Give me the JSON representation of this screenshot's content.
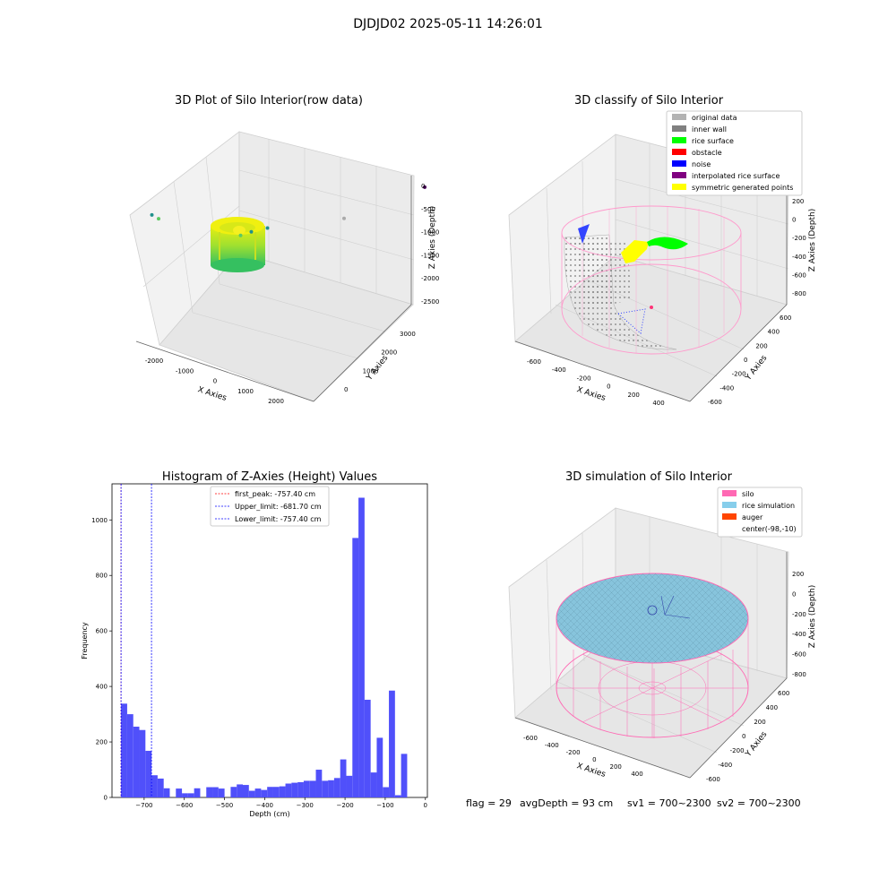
{
  "figure": {
    "suptitle": "DJDJD02 2025-05-11 14:26:01",
    "status_line": {
      "flag": "flag = 29",
      "avg_depth": "avgDepth = 93 cm",
      "sv1": "sv1 = 700~2300",
      "sv2": "sv2 = 700~2300"
    }
  },
  "chart_data": [
    {
      "type": "scatter3d",
      "title": "3D Plot of Silo Interior(row data)",
      "xlabel": "X Axies",
      "ylabel": "Y Axies",
      "zlabel": "Z Axies (Depth)",
      "x_ticks": [
        "-2000",
        "-1000",
        "0",
        "1000",
        "2000"
      ],
      "y_ticks": [
        "0",
        "1000",
        "2000",
        "3000"
      ],
      "z_ticks": [
        "0",
        "-500",
        "-1000",
        "-1500",
        "-2000",
        "-2500"
      ],
      "colormap": [
        "#440154",
        "#21918c",
        "#5ec962",
        "#fde725"
      ],
      "outliers": [
        {
          "x": -2200,
          "y": 300,
          "z": -1400,
          "color": "#5ec962"
        },
        {
          "x": -2300,
          "y": 200,
          "z": -1700,
          "color": "#21918c"
        },
        {
          "x": -300,
          "y": 500,
          "z": -1500,
          "color": "#5ec962"
        },
        {
          "x": 100,
          "y": 300,
          "z": -2300,
          "color": "#21918c"
        },
        {
          "x": 300,
          "y": 600,
          "z": -2200,
          "color": "#21918c"
        },
        {
          "x": 1600,
          "y": 1500,
          "z": -2300,
          "color": "#aaaaaa"
        },
        {
          "x": 2600,
          "y": 3000,
          "z": -2500,
          "color": "#440154"
        }
      ]
    },
    {
      "type": "scatter3d",
      "title": "3D classify of Silo Interior",
      "xlabel": "X Axies",
      "ylabel": "Y Axies",
      "zlabel": "Z Axies (Depth)",
      "x_ticks": [
        "-600",
        "-400",
        "-200",
        "0",
        "200",
        "400"
      ],
      "y_ticks": [
        "-600",
        "-400",
        "-200",
        "0",
        "200",
        "400",
        "600"
      ],
      "z_ticks": [
        "200",
        "0",
        "-200",
        "-400",
        "-600",
        "-800"
      ],
      "legend_position": "upper-right",
      "legend": [
        {
          "label": "original data",
          "color": "#b3b3b3"
        },
        {
          "label": "inner wall",
          "color": "#808080"
        },
        {
          "label": "rice surface",
          "color": "#00ff00"
        },
        {
          "label": "obstacle",
          "color": "#ff0000"
        },
        {
          "label": "noise",
          "color": "#0000ff"
        },
        {
          "label": "interpolated rice surface",
          "color": "#800080"
        },
        {
          "label": "symmetric generated points",
          "color": "#ffff00"
        }
      ]
    },
    {
      "type": "bar",
      "title": "Histogram of Z-Axies (Height) Values",
      "xlabel": "Depth (cm)",
      "ylabel": "Frequency",
      "xlim": [
        -780,
        5
      ],
      "ylim": [
        0,
        1130
      ],
      "x_ticks": [
        -700,
        -600,
        -500,
        -400,
        -300,
        -200,
        -100,
        0
      ],
      "y_ticks": [
        0,
        200,
        400,
        600,
        800,
        1000
      ],
      "bin_start": -757.4,
      "bin_width": 15.15,
      "values": [
        338,
        300,
        255,
        243,
        168,
        80,
        68,
        33,
        0,
        32,
        15,
        15,
        33,
        0,
        37,
        37,
        32,
        0,
        38,
        47,
        45,
        24,
        32,
        27,
        38,
        38,
        40,
        50,
        53,
        55,
        60,
        60,
        100,
        60,
        62,
        70,
        137,
        78,
        935,
        1080,
        352,
        90,
        215,
        37,
        385,
        8,
        157
      ],
      "bar_color": "#5050fa",
      "legend_position": "upper-center",
      "vlines": [
        {
          "label": "first_peak: -757.40 cm",
          "x": -757.4,
          "color": "#ff0000"
        },
        {
          "label": "Upper_limit: -681.70 cm",
          "x": -681.7,
          "color": "#0000ff"
        },
        {
          "label": "Lower_limit: -757.40 cm",
          "x": -757.4,
          "color": "#0000ff"
        }
      ]
    },
    {
      "type": "surface3d",
      "title": "3D simulation of Silo Interior",
      "xlabel": "X Axies",
      "ylabel": "Y Axies",
      "zlabel": "Z Axies (Depth)",
      "x_ticks": [
        "-600",
        "-400",
        "-200",
        "0",
        "200",
        "400"
      ],
      "y_ticks": [
        "-600",
        "-400",
        "-200",
        "0",
        "200",
        "400",
        "600"
      ],
      "z_ticks": [
        "200",
        "0",
        "-200",
        "-400",
        "-600",
        "-800"
      ],
      "legend_position": "upper-right",
      "legend": [
        {
          "label": "silo",
          "color": "#ff69b4"
        },
        {
          "label": "rice simulation",
          "color": "#87ceeb"
        },
        {
          "label": "auger",
          "color": "#ff4500"
        },
        {
          "label": "center(-98,-10)",
          "color": "none"
        }
      ]
    }
  ]
}
